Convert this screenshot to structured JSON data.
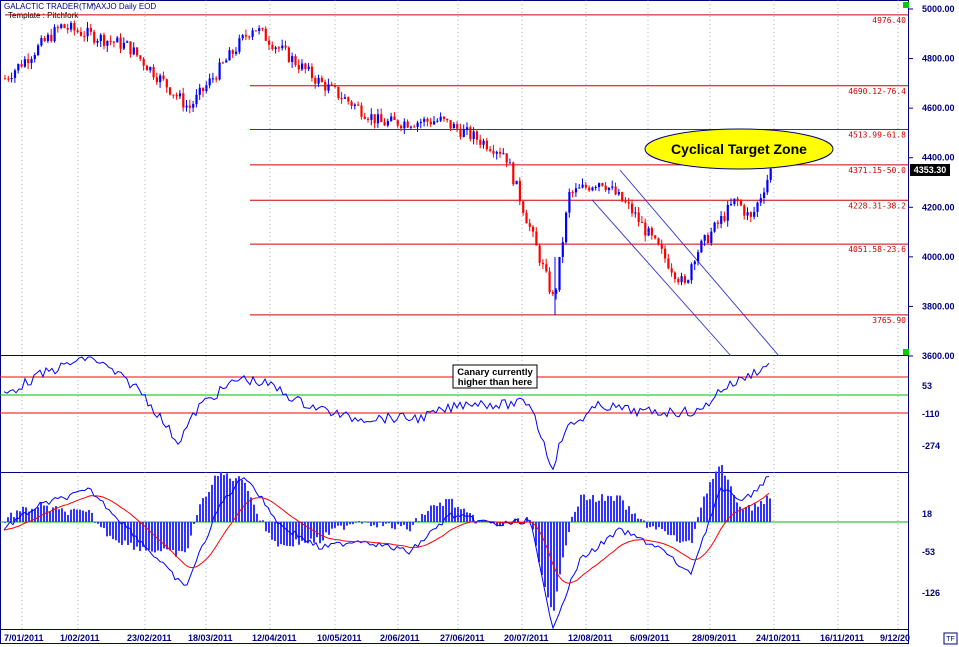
{
  "header": {
    "app": "GALACTIC TRADER(TM)",
    "symbol": "^AXJO Daily EOD",
    "template": "Template : Pitchfork"
  },
  "price_axis_labels": [
    "5000.00",
    "4800.00",
    "4600.00",
    "4400.00",
    "4200.00",
    "4000.00",
    "3800.00",
    "3600.00"
  ],
  "last_price": "4353.30",
  "fib_levels": [
    {
      "value": 4976.4,
      "label": "4976.40"
    },
    {
      "value": 4690.12,
      "label": "4690.12-76.4"
    },
    {
      "value": 4513.99,
      "label": "4513.99-61.8"
    },
    {
      "value": 4371.15,
      "label": "4371.15-50.0"
    },
    {
      "value": 4228.31,
      "label": "4228.31-38.2"
    },
    {
      "value": 4051.58,
      "label": "4051.58-23.6"
    },
    {
      "value": 3765.9,
      "label": "3765.90"
    }
  ],
  "annotations": {
    "target_zone": "Cyclical Target Zone",
    "canary_line1": "Canary currently",
    "canary_line2": "higher than here"
  },
  "osc_axis_labels": [
    "53",
    "-110",
    "-274"
  ],
  "macd_axis_labels": [
    "18",
    "-53",
    "-126"
  ],
  "date_labels": [
    "7/01/2011",
    "1/02/2011",
    "23/02/2011",
    "18/03/2011",
    "12/04/2011",
    "10/05/2011",
    "2/06/2011",
    "27/06/2011",
    "20/07/2011",
    "12/08/2011",
    "6/09/2011",
    "28/09/2011",
    "24/10/2011",
    "16/11/2011",
    "9/12/20"
  ],
  "footer_badge": "TF",
  "colors": {
    "up_candle": "#0000ff",
    "down_candle": "#ff0000",
    "fib_line": "#cc0000",
    "grid": "#000080",
    "oscillator": "#0000ff",
    "signal": "#ff0000",
    "zero_line": "#00bb00",
    "target_zone_fill": "#ffff00"
  },
  "chart_data": [
    {
      "type": "candlestick",
      "title": "^AXJO Daily EOD",
      "ylim": [
        3600,
        5000
      ],
      "x_range": [
        "7/01/2011",
        "9/12/2011"
      ],
      "close_path": [
        [
          "7/01/2011",
          4720
        ],
        [
          "1/02/2011",
          4930
        ],
        [
          "23/02/2011",
          4850
        ],
        [
          "18/03/2011",
          4600
        ],
        [
          "12/04/2011",
          4930
        ],
        [
          "10/05/2011",
          4710
        ],
        [
          "2/06/2011",
          4540
        ],
        [
          "27/06/2011",
          4550
        ],
        [
          "20/07/2011",
          4420
        ],
        [
          "8/08/2011",
          3820
        ],
        [
          "12/08/2011",
          4250
        ],
        [
          "22/08/2011",
          4310
        ],
        [
          "6/09/2011",
          4190
        ],
        [
          "26/09/2011",
          3880
        ],
        [
          "28/09/2011",
          4000
        ],
        [
          "12/10/2011",
          4230
        ],
        [
          "19/10/2011",
          4150
        ],
        [
          "24/10/2011",
          4353.3
        ]
      ],
      "trend_channel": {
        "upper_line": [
          [
            "22/08/2011",
            4350
          ],
          [
            "30/10/2011",
            3600
          ]
        ],
        "lower_line": [
          [
            "22/08/2011",
            4230
          ],
          [
            "26/10/2011",
            3600
          ]
        ]
      }
    },
    {
      "type": "line",
      "title": "",
      "reference_levels": [
        53,
        -110
      ],
      "ylim": [
        -274,
        200
      ]
    },
    {
      "type": "bar",
      "title": "",
      "reference_levels": [
        18
      ],
      "ylim": [
        -126,
        80
      ],
      "series": [
        {
          "values": "histogram"
        },
        {
          "values": "macd"
        },
        {
          "values": "signal"
        }
      ]
    }
  ]
}
